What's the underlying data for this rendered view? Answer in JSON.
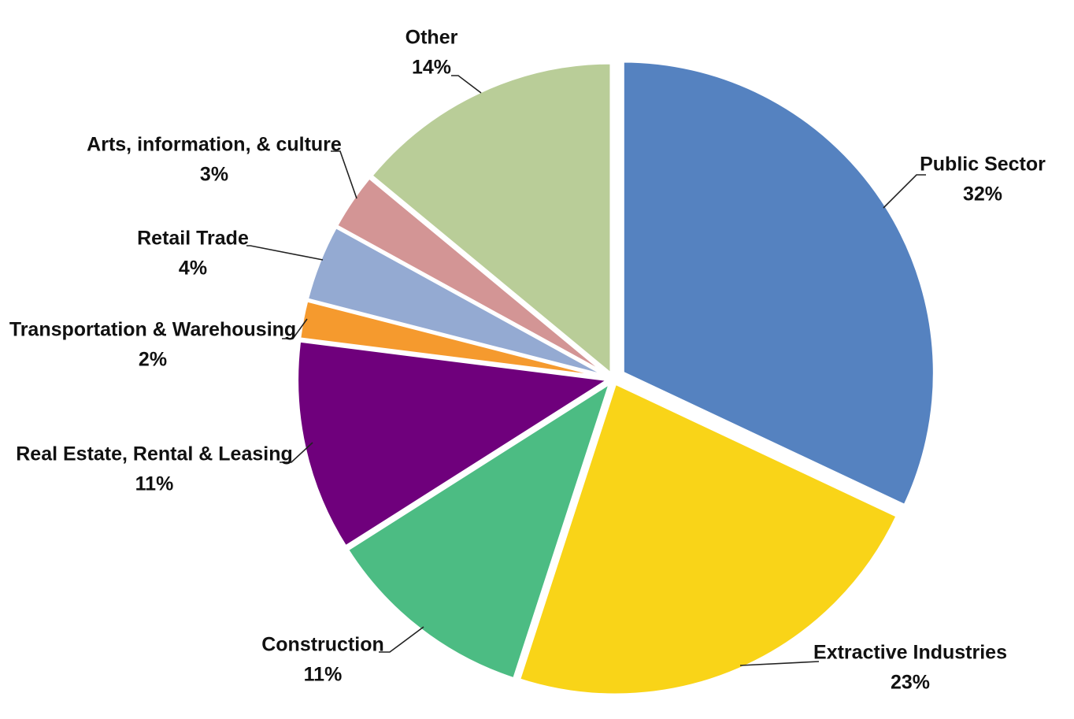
{
  "chart_data": {
    "type": "pie",
    "title": "",
    "unit": "%",
    "slices": [
      {
        "name": "Public Sector",
        "value": 32,
        "label": "32%",
        "color": "#5582C0"
      },
      {
        "name": "Extractive Industries",
        "value": 23,
        "label": "23%",
        "color": "#F9D418"
      },
      {
        "name": "Construction",
        "value": 11,
        "label": "11%",
        "color": "#4CBC83"
      },
      {
        "name": "Real Estate, Rental & Leasing",
        "value": 11,
        "label": "11%",
        "color": "#6F007C"
      },
      {
        "name": "Transportation & Warehousing",
        "value": 2,
        "label": "2%",
        "color": "#F59A2E"
      },
      {
        "name": "Retail Trade",
        "value": 4,
        "label": "4%",
        "color": "#94AAD2"
      },
      {
        "name": "Arts, information, & culture",
        "value": 3,
        "label": "3%",
        "color": "#D39595"
      },
      {
        "name": "Other",
        "value": 14,
        "label": "14%",
        "color": "#B9CD98"
      }
    ],
    "start_angle_deg": 0,
    "direction": "clockwise",
    "exploded": [
      "Public Sector"
    ],
    "legend": "none",
    "data_labels": "outside with leader lines"
  }
}
